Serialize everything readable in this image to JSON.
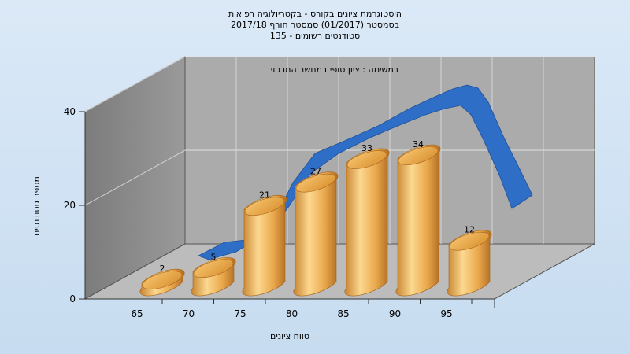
{
  "titles": {
    "line1": "היסטוגרמת ציונים בקורס - בקטריולוגיה רפואית",
    "line2": "בסמסטר  (01/2017)  סמסטר חורף 2017/18",
    "line3": "135 - סטודנטים רשומים"
  },
  "chart_data": {
    "type": "bar",
    "subtitle": "במשימה : ציון סופי במחשב המרכזי",
    "xlabel": "טווח ציונים",
    "ylabel": "מספר סטודנטים",
    "categories": [
      "65",
      "70",
      "75",
      "80",
      "85",
      "90",
      "95"
    ],
    "values": [
      2,
      5,
      21,
      27,
      33,
      34,
      12
    ],
    "ylim": [
      0,
      40
    ],
    "yticks": [
      0,
      20,
      40
    ],
    "grid": true,
    "colors": {
      "bar": "#e8a94a",
      "bar_light": "#fbd68a",
      "bar_dark": "#b97425",
      "curve": "#2e6fc4",
      "back_wall": "#aaaaaa",
      "side_wall": "#8a8a8a",
      "floor": "#bdbdbd"
    }
  }
}
